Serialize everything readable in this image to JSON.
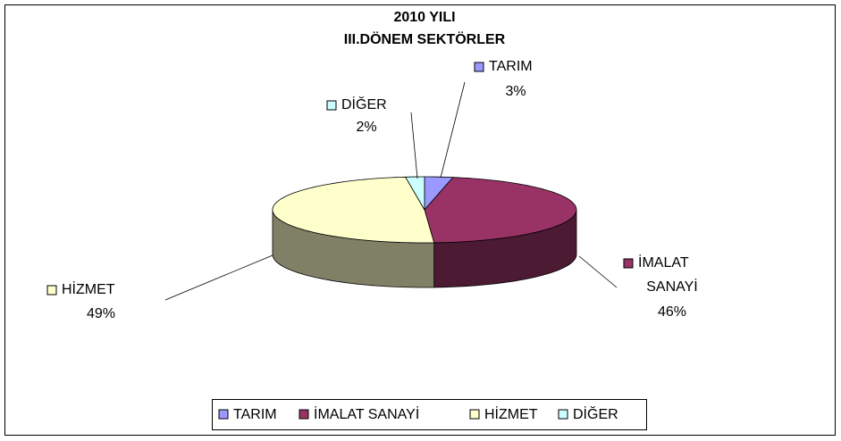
{
  "chart_data": {
    "type": "pie3d",
    "title": [
      "2010 YILI",
      "III.DÖNEM SEKTÖRLER"
    ],
    "categories": [
      "TARIM",
      "İMALAT SANAYİ",
      "HİZMET",
      "DİĞER"
    ],
    "values": [
      3,
      46,
      49,
      2
    ],
    "value_labels": [
      "3%",
      "46%",
      "49%",
      "2%"
    ],
    "colors": [
      "#9999ff",
      "#993366",
      "#ffffcc",
      "#ccffff"
    ],
    "side_colors": [
      "#4d4d80",
      "#4d1a33",
      "#808066",
      "#668080"
    ],
    "legend": "bottom"
  }
}
